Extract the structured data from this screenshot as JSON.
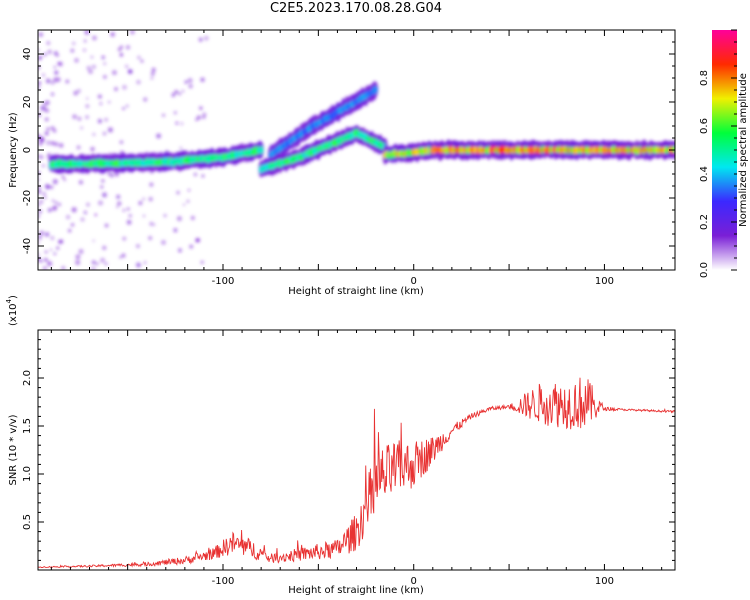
{
  "title": "C2E5.2023.170.08.28.G04",
  "colors": {
    "snr_line": "#e83232",
    "colormap": [
      "#ffffff",
      "#7a1fd6",
      "#3b28ff",
      "#00e8f0",
      "#00ff3a",
      "#f0f000",
      "#ff2a00",
      "#ff0099"
    ]
  },
  "chart_data": [
    {
      "type": "heatmap",
      "xlabel": "Height of straight line (km)",
      "ylabel": "Frequency (Hz)",
      "xlim": [
        -197,
        137
      ],
      "ylim": [
        -50,
        50
      ],
      "xticks": [
        -100,
        0,
        100
      ],
      "xtick_labels": [
        "-100",
        "0",
        "100"
      ],
      "yticks": [
        -40,
        -20,
        0,
        20,
        40
      ],
      "ytick_labels": [
        "-40",
        "-20",
        "0",
        "20",
        "40"
      ],
      "colorbar": {
        "label": "Normalized spectral amplitude",
        "range": [
          0.0,
          1.0
        ],
        "ticks": [
          0.0,
          0.2,
          0.4,
          0.6,
          0.8
        ],
        "tick_labels": [
          "0.0",
          "0.2",
          "0.4",
          "0.6",
          "0.8"
        ]
      },
      "ridges": [
        {
          "x": [
            -190,
            -130,
            -100,
            -80
          ],
          "freq": [
            -6,
            -5,
            -3,
            0
          ],
          "amplitude": 0.5
        },
        {
          "x": [
            -80,
            -60,
            -30,
            -15
          ],
          "freq": [
            -8,
            -3,
            7,
            1
          ],
          "amplitude": 0.5
        },
        {
          "x": [
            -75,
            -55,
            -35,
            -20
          ],
          "freq": [
            -2,
            9,
            18,
            25
          ],
          "amplitude": 0.2
        },
        {
          "x": [
            -15,
            0,
            10
          ],
          "freq": [
            -2,
            -1,
            0
          ],
          "amplitude": 0.75
        },
        {
          "x": [
            10,
            137
          ],
          "freq": [
            0,
            0
          ],
          "amplitude": 0.95
        }
      ]
    },
    {
      "type": "line",
      "xlabel": "Height of straight line (km)",
      "ylabel": "SNR (10 * v/v)",
      "y_multiplier": "(x10",
      "y_multiplier_exp": "4",
      "y_multiplier_close": ")",
      "xlim": [
        -197,
        137
      ],
      "ylim": [
        0.0,
        2.5
      ],
      "xticks": [
        -100,
        0,
        100
      ],
      "xtick_labels": [
        "-100",
        "0",
        "100"
      ],
      "yticks": [
        0.5,
        1.0,
        1.5,
        2.0
      ],
      "ytick_labels": [
        "0.5",
        "1.0",
        "1.5",
        "2.0"
      ],
      "series": [
        {
          "x": [
            -197,
            -170,
            -140,
            -120,
            -105,
            -95,
            -85,
            -75,
            -60,
            -40,
            -30,
            -20,
            -10,
            0,
            10,
            20,
            30,
            40,
            50,
            60,
            70,
            80,
            90,
            100,
            110,
            137
          ],
          "y": [
            0.03,
            0.04,
            0.06,
            0.1,
            0.17,
            0.28,
            0.22,
            0.12,
            0.16,
            0.22,
            0.4,
            0.9,
            1.05,
            1.1,
            1.25,
            1.45,
            1.6,
            1.68,
            1.7,
            1.72,
            1.75,
            1.72,
            1.75,
            1.68,
            1.67,
            1.65
          ],
          "noise_amplitude": [
            0.005,
            0.01,
            0.02,
            0.04,
            0.06,
            0.12,
            0.1,
            0.05,
            0.07,
            0.1,
            0.2,
            0.35,
            0.3,
            0.25,
            0.15,
            0.06,
            0.03,
            0.02,
            0.02,
            0.15,
            0.25,
            0.25,
            0.3,
            0.02,
            0.01,
            0.01
          ]
        }
      ]
    }
  ]
}
